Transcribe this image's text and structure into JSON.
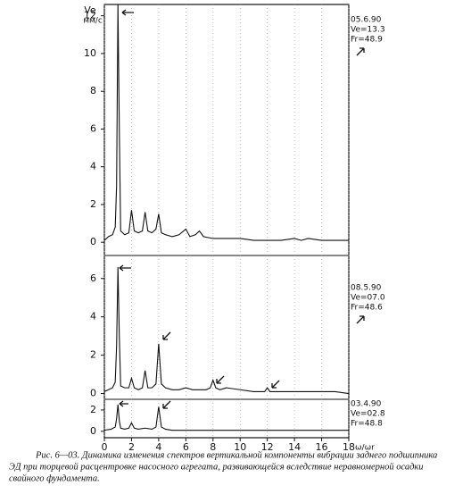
{
  "chart_data": [
    {
      "type": "line",
      "ylabel": "Ve",
      "yunit": "мм/с",
      "annotations": [
        "05.6.90",
        "Ve=13.3",
        "Fr=48.9"
      ],
      "x": [
        0,
        0.3,
        0.6,
        0.8,
        0.9,
        1.0,
        1.1,
        1.2,
        1.5,
        1.8,
        2.0,
        2.2,
        2.5,
        2.8,
        3.0,
        3.2,
        3.5,
        3.8,
        4.0,
        4.2,
        4.5,
        5.0,
        5.5,
        6.0,
        6.3,
        6.7,
        7.0,
        7.3,
        8.0,
        9.0,
        10,
        11,
        12,
        13,
        14,
        14.5,
        15,
        16,
        17,
        18
      ],
      "series": [
        {
          "color": "#111111",
          "values": [
            0.1,
            0.3,
            0.4,
            0.8,
            3,
            12.6,
            6,
            0.6,
            0.4,
            0.5,
            1.7,
            0.6,
            0.5,
            0.6,
            1.6,
            0.6,
            0.5,
            0.7,
            1.5,
            0.5,
            0.4,
            0.3,
            0.4,
            0.7,
            0.3,
            0.4,
            0.6,
            0.3,
            0.2,
            0.2,
            0.2,
            0.1,
            0.1,
            0.1,
            0.2,
            0.1,
            0.2,
            0.1,
            0.1,
            0.1
          ]
        }
      ],
      "xlim": [
        0,
        18
      ],
      "ylim": [
        -0.7,
        12.6
      ],
      "yticks": [
        0,
        2,
        4,
        6,
        8,
        10,
        12
      ]
    },
    {
      "type": "line",
      "annotations": [
        "08.5.90",
        "Ve=07.0",
        "Fr=48.6"
      ],
      "x": [
        0,
        0.3,
        0.6,
        0.8,
        0.9,
        1.0,
        1.1,
        1.2,
        1.5,
        1.8,
        2.0,
        2.2,
        2.5,
        2.8,
        3.0,
        3.2,
        3.5,
        3.8,
        4.0,
        4.2,
        4.5,
        5.0,
        5.5,
        6.0,
        6.5,
        7.0,
        7.5,
        7.8,
        8.0,
        8.2,
        8.5,
        9.0,
        10.0,
        11.0,
        11.8,
        12.0,
        12.2,
        13.0,
        14.0,
        15.0,
        16,
        17,
        18
      ],
      "series": [
        {
          "color": "#111111",
          "values": [
            0.1,
            0.2,
            0.3,
            0.6,
            2.5,
            6.6,
            3,
            0.4,
            0.3,
            0.3,
            0.8,
            0.3,
            0.2,
            0.3,
            1.2,
            0.3,
            0.3,
            0.5,
            2.6,
            0.5,
            0.3,
            0.2,
            0.2,
            0.3,
            0.2,
            0.2,
            0.2,
            0.3,
            0.7,
            0.3,
            0.2,
            0.3,
            0.2,
            0.1,
            0.1,
            0.3,
            0.1,
            0.1,
            0.1,
            0.1,
            0.1,
            0.1,
            0.0
          ]
        }
      ],
      "xlim": [
        0,
        18
      ],
      "ylim": [
        -0.3,
        7.2
      ],
      "yticks": [
        0,
        2,
        4,
        6
      ]
    },
    {
      "type": "line",
      "annotations": [
        "03.4.90",
        "Ve=02.8",
        "Fr=48.8"
      ],
      "xlabel": "ω/ωr",
      "x": [
        0,
        0.5,
        0.8,
        0.9,
        1.0,
        1.1,
        1.2,
        1.5,
        1.8,
        2.0,
        2.2,
        2.5,
        3.0,
        3.5,
        3.8,
        4.0,
        4.2,
        4.5,
        5.0,
        6.0,
        7.0,
        8.0,
        9.0,
        10.0,
        12.0,
        14.0,
        16.0,
        18.0
      ],
      "series": [
        {
          "color": "#111111",
          "values": [
            0.1,
            0.2,
            0.4,
            1.2,
            2.5,
            1.0,
            0.3,
            0.2,
            0.3,
            0.8,
            0.3,
            0.2,
            0.3,
            0.2,
            0.4,
            2.3,
            0.4,
            0.2,
            0.1,
            0.1,
            0.1,
            0.1,
            0.1,
            0.1,
            0.1,
            0.1,
            0.1,
            0.1
          ]
        }
      ],
      "xlim": [
        0,
        18
      ],
      "ylim": [
        -0.6,
        3
      ],
      "yticks": [
        0,
        2
      ],
      "xticks": [
        0,
        2,
        4,
        6,
        8,
        10,
        12,
        14,
        16,
        18
      ]
    }
  ],
  "caption": [
    "Рис. 6—03. Динамика изменения спектров вертикальной компоненты вибрации заднего подшипника",
    "ЭД при торцевой расцентровке насосного агрегата, развивающейся вследствие неравномерной осадки",
    "свайного фундамента."
  ]
}
